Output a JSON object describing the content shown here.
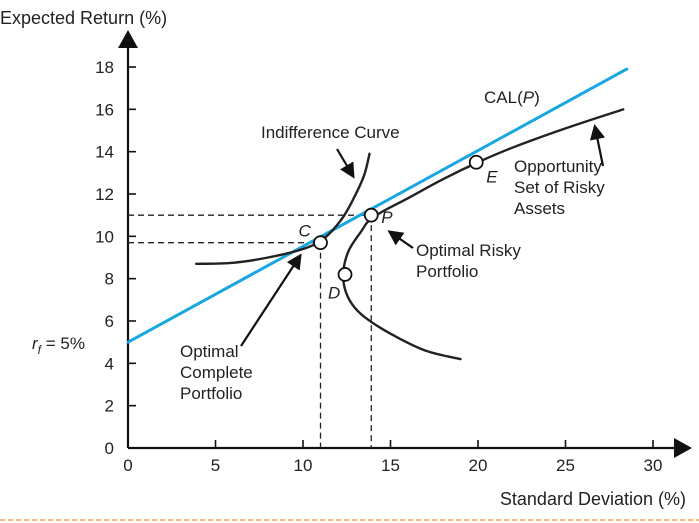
{
  "chart_data": {
    "type": "line",
    "title": "",
    "ylabel": "Expected Return (%)",
    "xlabel": "Standard Deviation (%)",
    "xlim": [
      0,
      30
    ],
    "ylim": [
      0,
      18
    ],
    "x_ticks": [
      0,
      5,
      10,
      15,
      20,
      25,
      30
    ],
    "y_ticks": [
      0,
      2,
      4,
      6,
      8,
      10,
      12,
      14,
      16,
      18
    ],
    "rf_label": "r",
    "rf_subscript": "f",
    "rf_value_text": " = 5%",
    "rf": 5,
    "grid": false,
    "colors": {
      "cal": "#1aa6e0",
      "curves": "#222222",
      "axes": "#111111",
      "footer_rule": "#f4a050"
    },
    "series": [
      {
        "name": "CAL(P)",
        "x": [
          0,
          28.5
        ],
        "y": [
          5,
          17.9
        ]
      },
      {
        "name": "Opportunity Set of Risky Assets",
        "x": [
          28.3,
          25,
          22,
          20,
          18,
          16,
          14,
          13.3,
          12.6,
          12.3,
          12.4,
          12.8,
          13.5,
          15,
          17,
          19
        ],
        "y": [
          16.0,
          15.1,
          14.2,
          13.5,
          12.7,
          11.8,
          10.9,
          10.2,
          9.3,
          8.3,
          7.5,
          6.8,
          6.2,
          5.4,
          4.6,
          4.2
        ]
      },
      {
        "name": "Indifference Curve",
        "x": [
          3.9,
          6,
          8,
          10,
          11.2,
          12.2,
          12.9,
          13.5,
          13.8
        ],
        "y": [
          8.7,
          8.75,
          9.0,
          9.4,
          9.9,
          10.8,
          11.8,
          12.9,
          13.9
        ]
      }
    ],
    "points": [
      {
        "label": "C",
        "x": 11.0,
        "y": 9.7
      },
      {
        "label": "P",
        "x": 13.9,
        "y": 11.0
      },
      {
        "label": "E",
        "x": 19.9,
        "y": 13.5
      },
      {
        "label": "D",
        "x": 12.4,
        "y": 8.2
      }
    ],
    "annotations": [
      {
        "lines": [
          "CAL(",
          "P",
          ")"
        ]
      },
      {
        "lines": [
          "Indifference Curve"
        ]
      },
      {
        "lines": [
          "Opportunity",
          "Set of Risky",
          "Assets"
        ]
      },
      {
        "lines": [
          "Optimal Risky",
          "Portfolio"
        ]
      },
      {
        "lines": [
          "Optimal",
          "Complete",
          "Portfolio"
        ]
      }
    ]
  }
}
